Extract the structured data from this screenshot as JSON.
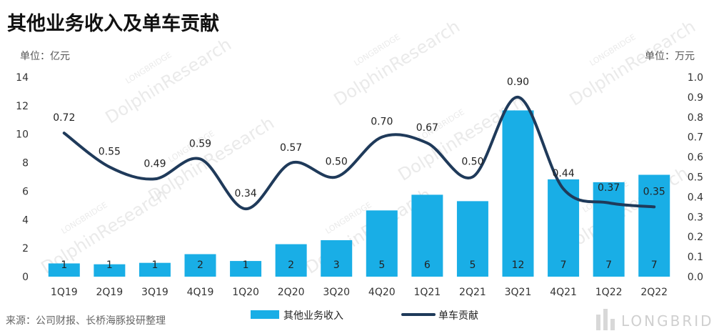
{
  "title": "其他业务收入及单车贡献",
  "left_unit": "单位：亿元",
  "right_unit": "单位：万元",
  "source": "来源：公司财报、长桥海豚投研整理",
  "watermark": {
    "text_main": "DolphinResearch",
    "text_small": "LONGBRIDGE",
    "brand": "LONGBRIDGE"
  },
  "colors": {
    "bar": "#19aee6",
    "line": "#1f3a5a",
    "text": "#222222"
  },
  "chart_data": {
    "type": "bar",
    "categories": [
      "1Q19",
      "2Q19",
      "3Q19",
      "4Q19",
      "1Q20",
      "2Q20",
      "3Q20",
      "4Q20",
      "1Q21",
      "2Q21",
      "3Q21",
      "4Q21",
      "1Q22",
      "2Q22"
    ],
    "series": [
      {
        "name": "其他业务收入",
        "type": "bar",
        "axis": "left",
        "values": [
          0.93,
          0.87,
          0.97,
          1.58,
          1.1,
          2.28,
          2.56,
          4.65,
          5.75,
          5.3,
          11.67,
          6.83,
          6.63,
          7.15
        ],
        "labels": [
          "1",
          "1",
          "1",
          "2",
          "1",
          "2",
          "3",
          "5",
          "6",
          "5",
          "12",
          "7",
          "7",
          "7"
        ]
      },
      {
        "name": "单车贡献",
        "type": "line",
        "axis": "right",
        "values": [
          0.72,
          0.55,
          0.49,
          0.59,
          0.34,
          0.57,
          0.5,
          0.7,
          0.67,
          0.5,
          0.9,
          0.44,
          0.37,
          0.35
        ],
        "labels": [
          "0.72",
          "0.55",
          "0.49",
          "0.59",
          "0.34",
          "0.57",
          "0.50",
          "0.70",
          "0.67",
          "0.50",
          "0.90",
          "0.44",
          "0.37",
          "0.35"
        ]
      }
    ],
    "left_axis": {
      "ylim": [
        0,
        14
      ],
      "ticks": [
        "0",
        "2",
        "4",
        "6",
        "8",
        "10",
        "12",
        "14"
      ]
    },
    "right_axis": {
      "ylim": [
        0,
        1
      ],
      "ticks": [
        "0.0",
        "0.1",
        "0.2",
        "0.3",
        "0.4",
        "0.5",
        "0.6",
        "0.7",
        "0.8",
        "0.9",
        "1.0"
      ]
    },
    "grid": false,
    "legend_position": "bottom-center",
    "legend": [
      "其他业务收入",
      "单车贡献"
    ]
  }
}
